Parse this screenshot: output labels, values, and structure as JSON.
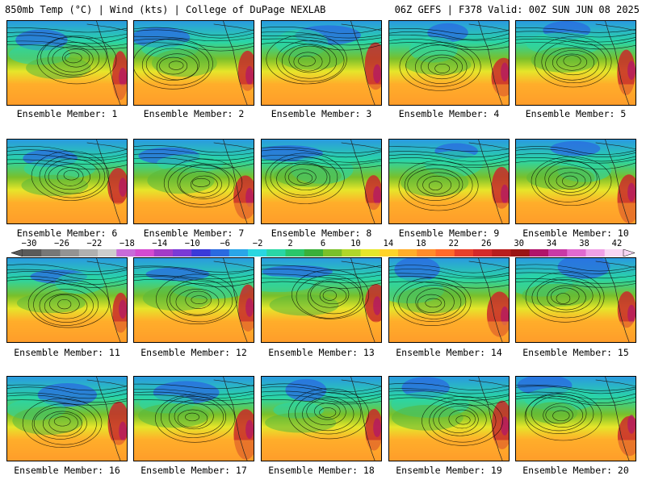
{
  "header": {
    "title_left": "850mb Temp (°C) | Wind (kts) | College of DuPage NEXLAB",
    "title_right": "06Z GEFS | F378 Valid: 00Z SUN JUN 08 2025"
  },
  "members": [
    "Ensemble Member: 1",
    "Ensemble Member: 2",
    "Ensemble Member: 3",
    "Ensemble Member: 4",
    "Ensemble Member: 5",
    "Ensemble Member: 6",
    "Ensemble Member: 7",
    "Ensemble Member: 8",
    "Ensemble Member: 9",
    "Ensemble Member: 10",
    "Ensemble Member: 11",
    "Ensemble Member: 12",
    "Ensemble Member: 13",
    "Ensemble Member: 14",
    "Ensemble Member: 15",
    "Ensemble Member: 16",
    "Ensemble Member: 17",
    "Ensemble Member: 18",
    "Ensemble Member: 19",
    "Ensemble Member: 20"
  ],
  "colorbar": {
    "labels": [
      "−30",
      "−26",
      "−22",
      "−18",
      "−14",
      "−10",
      "−6",
      "−2",
      "2",
      "6",
      "10",
      "14",
      "18",
      "22",
      "26",
      "30",
      "34",
      "38",
      "42"
    ],
    "colors": [
      "#5a5a5a",
      "#777777",
      "#939393",
      "#b0b0b0",
      "#cdcdcd",
      "#c86bd9",
      "#d44bd1",
      "#a33bc7",
      "#7a3ad6",
      "#3a3ad9",
      "#2a6ae0",
      "#2aa6e8",
      "#2ad6e0",
      "#2ad6a6",
      "#2ac66a",
      "#3ab03a",
      "#7ac02a",
      "#b0d62a",
      "#e6e62a",
      "#ffd42a",
      "#ffae2a",
      "#ff8c2a",
      "#ff6a2a",
      "#e8402a",
      "#d42a2a",
      "#b81e1e",
      "#9a1414",
      "#b0146a",
      "#c83aa6",
      "#e06ad0",
      "#f0a0e6",
      "#f8d6f4"
    ]
  }
}
